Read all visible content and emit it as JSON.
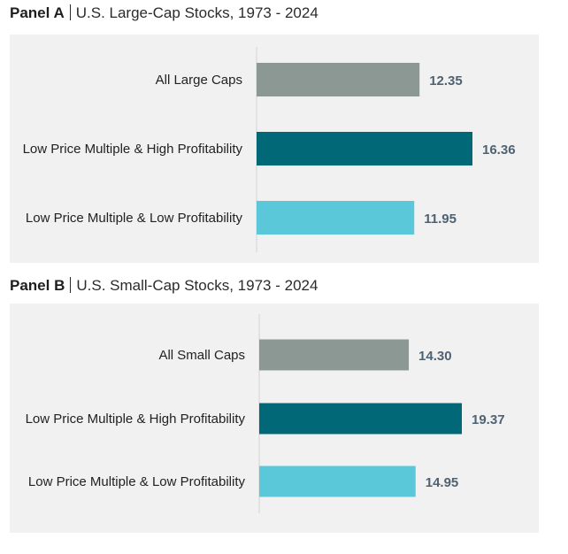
{
  "chart_data": [
    {
      "type": "bar",
      "orientation": "horizontal",
      "panel_label": "Panel A",
      "title": "U.S. Large-Cap Stocks, 1973 - 2024",
      "categories": [
        "All Large Caps",
        "Low Price Multiple & High Profitability",
        "Low Price Multiple & Low Profitability"
      ],
      "values": [
        12.35,
        16.36,
        11.95
      ],
      "value_labels": [
        "12.35",
        "16.36",
        "11.95"
      ],
      "colors": [
        "#8c9893",
        "#006877",
        "#5bc8da"
      ],
      "xlim": [
        0,
        16.36
      ]
    },
    {
      "type": "bar",
      "orientation": "horizontal",
      "panel_label": "Panel B",
      "title": "U.S. Small-Cap Stocks, 1973 - 2024",
      "categories": [
        "All Small Caps",
        "Low Price Multiple & High Profitability",
        "Low Price Multiple & Low Profitability"
      ],
      "values": [
        14.3,
        19.37,
        14.95
      ],
      "value_labels": [
        "14.30",
        "19.37",
        "14.95"
      ],
      "colors": [
        "#8c9893",
        "#006877",
        "#5bc8da"
      ],
      "xlim": [
        0,
        19.37
      ]
    }
  ]
}
